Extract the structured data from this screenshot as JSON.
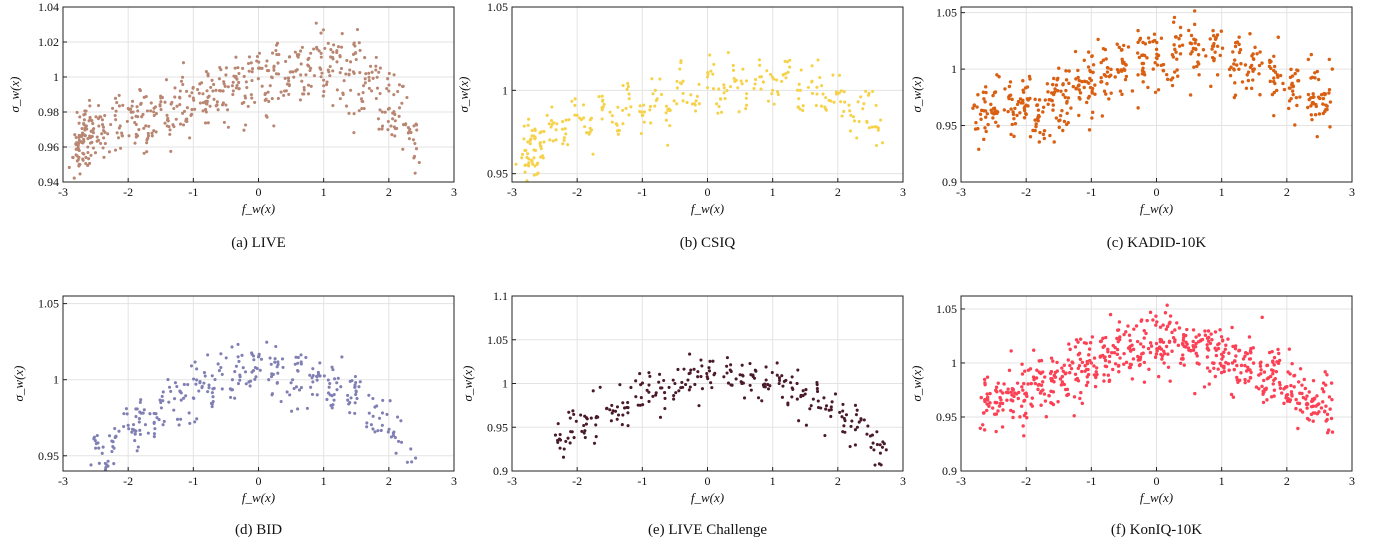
{
  "figure": {
    "panel_count": 6
  },
  "chart_data": [
    {
      "type": "scatter",
      "caption": "(a) LIVE",
      "title": "",
      "xlabel": "f_w(x)",
      "ylabel": "σ_w(x)",
      "xlim": [
        -3,
        3
      ],
      "ylim": [
        0.94,
        1.04
      ],
      "xticks": [
        "-3",
        "-2",
        "-1",
        "0",
        "1",
        "2",
        "3"
      ],
      "yticks": [
        "0.94",
        "0.96",
        "0.98",
        "1",
        "1.02",
        "1.04"
      ],
      "grid": true,
      "color": "#b98672",
      "series": [
        {
          "points": [
            [
              -2.78,
              0.952
            ],
            [
              -2.75,
              0.958
            ],
            [
              -2.72,
              0.963
            ],
            [
              -2.7,
              0.968
            ],
            [
              -2.68,
              0.956
            ],
            [
              -2.66,
              0.971
            ],
            [
              -2.62,
              0.96
            ],
            [
              -2.6,
              0.975
            ],
            [
              -2.55,
              0.966
            ],
            [
              -2.45,
              0.972
            ],
            [
              -2.35,
              0.962
            ],
            [
              -2.2,
              0.978
            ],
            [
              -2.1,
              0.968
            ],
            [
              -2.0,
              0.982
            ],
            [
              -1.9,
              0.974
            ],
            [
              -1.8,
              0.985
            ],
            [
              -1.7,
              0.965
            ],
            [
              -1.6,
              0.978
            ],
            [
              -1.5,
              0.988
            ],
            [
              -1.4,
              0.972
            ],
            [
              -1.3,
              0.982
            ],
            [
              -1.2,
              0.992
            ],
            [
              -1.1,
              0.976
            ],
            [
              -1.0,
              0.988
            ],
            [
              -0.9,
              0.996
            ],
            [
              -0.8,
              0.98
            ],
            [
              -0.7,
              0.992
            ],
            [
              -0.6,
              0.999
            ],
            [
              -0.5,
              0.984
            ],
            [
              -0.4,
              0.995
            ],
            [
              -0.3,
              1.002
            ],
            [
              -0.2,
              0.988
            ],
            [
              -0.1,
              0.998
            ],
            [
              0.0,
              1.005
            ],
            [
              0.1,
              0.99
            ],
            [
              0.2,
              1.0
            ],
            [
              0.3,
              1.008
            ],
            [
              0.4,
              0.992
            ],
            [
              0.5,
              1.003
            ],
            [
              0.6,
              1.012
            ],
            [
              0.7,
              0.994
            ],
            [
              0.8,
              1.005
            ],
            [
              0.9,
              1.016
            ],
            [
              1.0,
              0.995
            ],
            [
              1.1,
              1.006
            ],
            [
              1.2,
              1.014
            ],
            [
              1.3,
              0.99
            ],
            [
              1.4,
              1.004
            ],
            [
              1.5,
              1.01
            ],
            [
              1.6,
              0.986
            ],
            [
              1.7,
              0.998
            ],
            [
              1.8,
              1.004
            ],
            [
              1.9,
              0.98
            ],
            [
              2.0,
              0.992
            ],
            [
              2.1,
              0.975
            ],
            [
              2.2,
              0.985
            ],
            [
              2.3,
              0.968
            ],
            [
              2.4,
              0.962
            ]
          ]
        }
      ]
    },
    {
      "type": "scatter",
      "caption": "(b) CSIQ",
      "title": "",
      "xlabel": "f_w(x)",
      "ylabel": "σ_w(x)",
      "xlim": [
        -3,
        3
      ],
      "ylim": [
        0.945,
        1.05
      ],
      "xticks": [
        "-3",
        "-2",
        "-1",
        "0",
        "1",
        "2",
        "3"
      ],
      "yticks": [
        "0.95",
        "1",
        "1.05"
      ],
      "grid": true,
      "color": "#f6d24a",
      "series": [
        {
          "points": [
            [
              -2.8,
              0.955
            ],
            [
              -2.76,
              0.962
            ],
            [
              -2.72,
              0.968
            ],
            [
              -2.7,
              0.958
            ],
            [
              -2.65,
              0.972
            ],
            [
              -2.55,
              0.965
            ],
            [
              -2.4,
              0.978
            ],
            [
              -2.2,
              0.97
            ],
            [
              -2.0,
              0.985
            ],
            [
              -1.8,
              0.975
            ],
            [
              -1.6,
              0.99
            ],
            [
              -1.4,
              0.98
            ],
            [
              -1.2,
              0.995
            ],
            [
              -1.0,
              0.985
            ],
            [
              -0.8,
              1.0
            ],
            [
              -0.6,
              0.988
            ],
            [
              -0.4,
              1.004
            ],
            [
              -0.2,
              0.992
            ],
            [
              0.0,
              1.008
            ],
            [
              0.2,
              0.995
            ],
            [
              0.4,
              1.012
            ],
            [
              0.6,
              0.998
            ],
            [
              0.8,
              1.015
            ],
            [
              1.0,
              1.0
            ],
            [
              1.2,
              1.01
            ],
            [
              1.4,
              0.995
            ],
            [
              1.6,
              1.005
            ],
            [
              1.8,
              0.99
            ],
            [
              2.0,
              0.998
            ],
            [
              2.2,
              0.985
            ],
            [
              2.4,
              0.992
            ],
            [
              2.6,
              0.978
            ]
          ]
        }
      ]
    },
    {
      "type": "scatter",
      "caption": "(c) KADID-10K",
      "title": "",
      "xlabel": "f_w(x)",
      "ylabel": "σ_w(x)",
      "xlim": [
        -3,
        3
      ],
      "ylim": [
        0.9,
        1.055
      ],
      "xticks": [
        "-3",
        "-2",
        "-1",
        "0",
        "1",
        "2",
        "3"
      ],
      "yticks": [
        "0.9",
        "0.95",
        "1",
        "1.05"
      ],
      "grid": true,
      "color": "#d95f12",
      "series": [
        {
          "points": [
            [
              -2.7,
              0.96
            ],
            [
              -2.5,
              0.965
            ],
            [
              -2.2,
              0.962
            ],
            [
              -2.0,
              0.968
            ],
            [
              -1.8,
              0.958
            ],
            [
              -1.6,
              0.972
            ],
            [
              -1.4,
              0.975
            ],
            [
              -1.2,
              0.985
            ],
            [
              -1.0,
              0.99
            ],
            [
              -0.8,
              0.995
            ],
            [
              -0.5,
              1.0
            ],
            [
              -0.2,
              1.005
            ],
            [
              0.0,
              1.01
            ],
            [
              0.3,
              1.015
            ],
            [
              0.6,
              1.018
            ],
            [
              0.9,
              1.015
            ],
            [
              1.2,
              1.008
            ],
            [
              1.5,
              1.0
            ],
            [
              1.8,
              0.992
            ],
            [
              2.1,
              0.985
            ],
            [
              2.4,
              0.975
            ],
            [
              2.6,
              0.968
            ]
          ]
        }
      ]
    },
    {
      "type": "scatter",
      "caption": "(d) BID",
      "title": "",
      "xlabel": "f_w(x)",
      "ylabel": "σ_w(x)",
      "xlim": [
        -3,
        3
      ],
      "ylim": [
        0.94,
        1.055
      ],
      "xticks": [
        "-3",
        "-2",
        "-1",
        "0",
        "1",
        "2",
        "3"
      ],
      "yticks": [
        "0.95",
        "1",
        "1.05"
      ],
      "grid": true,
      "color": "#7f7fb4",
      "series": [
        {
          "points": [
            [
              -2.5,
              0.955
            ],
            [
              -2.35,
              0.945
            ],
            [
              -2.2,
              0.962
            ],
            [
              -2.0,
              0.97
            ],
            [
              -1.9,
              0.96
            ],
            [
              -1.8,
              0.978
            ],
            [
              -1.6,
              0.972
            ],
            [
              -1.5,
              0.985
            ],
            [
              -1.3,
              0.98
            ],
            [
              -1.2,
              0.992
            ],
            [
              -1.0,
              0.988
            ],
            [
              -0.9,
              0.998
            ],
            [
              -0.7,
              0.994
            ],
            [
              -0.6,
              1.006
            ],
            [
              -0.4,
              1.0
            ],
            [
              -0.3,
              1.012
            ],
            [
              -0.1,
              1.005
            ],
            [
              0.0,
              1.015
            ],
            [
              0.2,
              1.002
            ],
            [
              0.3,
              1.01
            ],
            [
              0.5,
              0.998
            ],
            [
              0.6,
              1.006
            ],
            [
              0.8,
              0.995
            ],
            [
              0.9,
              1.002
            ],
            [
              1.1,
              0.99
            ],
            [
              1.2,
              0.998
            ],
            [
              1.4,
              0.985
            ],
            [
              1.5,
              0.992
            ],
            [
              1.7,
              0.978
            ],
            [
              1.9,
              0.97
            ],
            [
              2.1,
              0.962
            ],
            [
              2.35,
              0.946
            ]
          ]
        }
      ]
    },
    {
      "type": "scatter",
      "caption": "(e) LIVE Challenge",
      "title": "",
      "xlabel": "f_w(x)",
      "ylabel": "σ_w(x)",
      "xlim": [
        -3,
        3
      ],
      "ylim": [
        0.9,
        1.1
      ],
      "xticks": [
        "-3",
        "-2",
        "-1",
        "0",
        "1",
        "2",
        "3"
      ],
      "yticks": [
        "0.9",
        "0.95",
        "1",
        "1.05",
        "1.1"
      ],
      "grid": true,
      "color": "#4a1a2a",
      "series": [
        {
          "points": [
            [
              -2.3,
              0.935
            ],
            [
              -2.1,
              0.945
            ],
            [
              -1.9,
              0.952
            ],
            [
              -1.7,
              0.962
            ],
            [
              -1.5,
              0.97
            ],
            [
              -1.3,
              0.978
            ],
            [
              -1.1,
              0.985
            ],
            [
              -0.9,
              0.99
            ],
            [
              -0.7,
              0.995
            ],
            [
              -0.5,
              1.0
            ],
            [
              -0.3,
              1.004
            ],
            [
              -0.1,
              1.008
            ],
            [
              0.1,
              1.01
            ],
            [
              0.3,
              1.012
            ],
            [
              0.5,
              1.01
            ],
            [
              0.7,
              1.008
            ],
            [
              0.9,
              1.004
            ],
            [
              1.1,
              1.0
            ],
            [
              1.3,
              0.995
            ],
            [
              1.5,
              0.988
            ],
            [
              1.7,
              0.98
            ],
            [
              1.9,
              0.97
            ],
            [
              2.1,
              0.96
            ],
            [
              2.3,
              0.95
            ],
            [
              2.5,
              0.94
            ],
            [
              2.65,
              0.93
            ]
          ]
        }
      ]
    },
    {
      "type": "scatter",
      "caption": "(f) KonIQ-10K",
      "title": "",
      "xlabel": "f_w(x)",
      "ylabel": "σ_w(x)",
      "xlim": [
        -3,
        3
      ],
      "ylim": [
        0.9,
        1.062
      ],
      "xticks": [
        "-3",
        "-2",
        "-1",
        "0",
        "1",
        "2",
        "3"
      ],
      "yticks": [
        "0.9",
        "0.95",
        "1",
        "1.05"
      ],
      "grid": true,
      "color": "#fc4155",
      "series": [
        {
          "points": [
            [
              -2.6,
              0.962
            ],
            [
              -2.4,
              0.968
            ],
            [
              -2.2,
              0.975
            ],
            [
              -2.0,
              0.972
            ],
            [
              -1.8,
              0.98
            ],
            [
              -1.6,
              0.985
            ],
            [
              -1.4,
              0.99
            ],
            [
              -1.2,
              0.995
            ],
            [
              -1.0,
              1.0
            ],
            [
              -0.8,
              1.005
            ],
            [
              -0.6,
              1.008
            ],
            [
              -0.4,
              1.012
            ],
            [
              -0.2,
              1.015
            ],
            [
              0.0,
              1.018
            ],
            [
              0.2,
              1.02
            ],
            [
              0.4,
              1.018
            ],
            [
              0.6,
              1.015
            ],
            [
              0.8,
              1.012
            ],
            [
              1.0,
              1.008
            ],
            [
              1.2,
              1.002
            ],
            [
              1.4,
              0.996
            ],
            [
              1.6,
              0.99
            ],
            [
              1.8,
              0.984
            ],
            [
              2.0,
              0.978
            ],
            [
              2.2,
              0.972
            ],
            [
              2.4,
              0.965
            ],
            [
              2.6,
              0.96
            ]
          ]
        }
      ]
    }
  ]
}
